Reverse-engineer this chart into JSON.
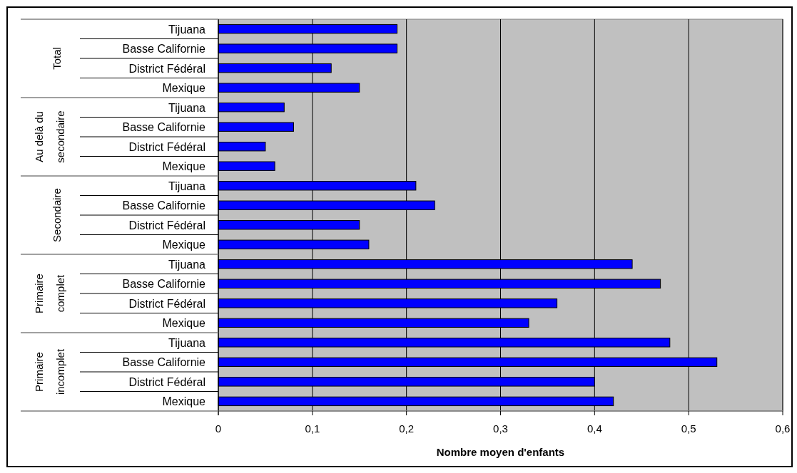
{
  "chart_data": {
    "type": "bar",
    "orientation": "horizontal",
    "xlabel": "Nombre moyen d'enfants",
    "categories": [
      "Tijuana",
      "Basse Californie",
      "District Fédéral",
      "Mexique",
      "Tijuana",
      "Basse Californie",
      "District Fédéral",
      "Mexique",
      "Tijuana",
      "Basse Californie",
      "District Fédéral",
      "Mexique",
      "Tijuana",
      "Basse Californie",
      "District Fédéral",
      "Mexique",
      "Tijuana",
      "Basse Californie",
      "District Fédéral",
      "Mexique"
    ],
    "values": [
      0.19,
      0.19,
      0.12,
      0.15,
      0.07,
      0.08,
      0.05,
      0.06,
      0.21,
      0.23,
      0.15,
      0.16,
      0.44,
      0.47,
      0.36,
      0.33,
      0.48,
      0.53,
      0.4,
      0.42
    ],
    "color": "#0000ff",
    "annotations": [
      "Total",
      "Au delà du secondaire",
      "Secondaire",
      "Primaire complet",
      "Primaire incomplet"
    ],
    "xlim": [
      0,
      0.6
    ],
    "xticks": [
      {
        "value": 0,
        "label": "0"
      },
      {
        "value": 0.1,
        "label": "0,1"
      },
      {
        "value": 0.2,
        "label": "0,2"
      },
      {
        "value": 0.3,
        "label": "0,3"
      },
      {
        "value": 0.4,
        "label": "0,4"
      },
      {
        "value": 0.5,
        "label": "0,5"
      },
      {
        "value": 0.6,
        "label": "0,6"
      }
    ],
    "grid": "x"
  }
}
